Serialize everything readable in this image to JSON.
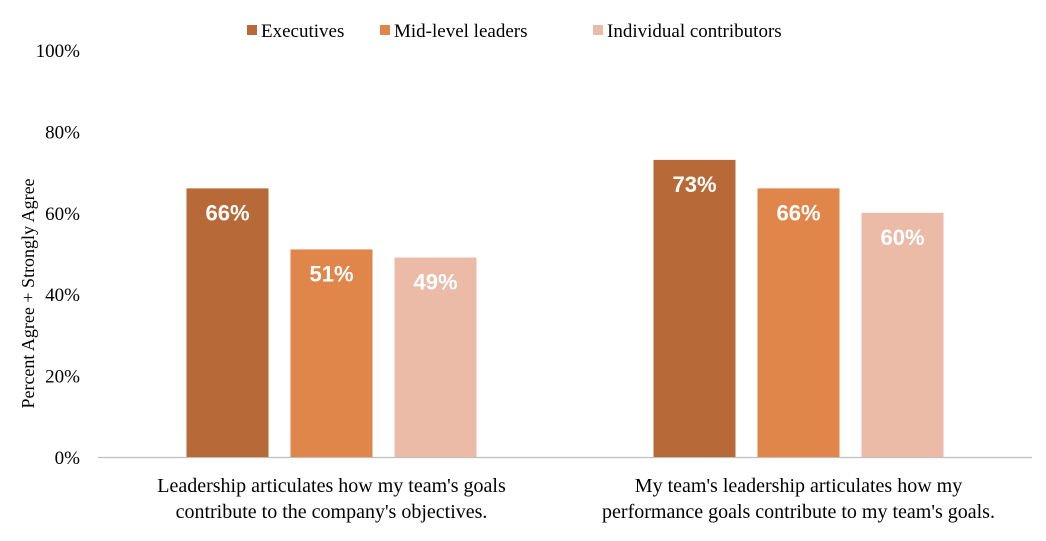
{
  "chart_data": {
    "type": "bar",
    "title": "",
    "ylabel": "Percent Agree + Strongly Agree",
    "xlabel": "",
    "ylim": [
      0,
      100
    ],
    "yticks": [
      0,
      20,
      40,
      60,
      80,
      100
    ],
    "ytick_labels": [
      "0%",
      "20%",
      "40%",
      "60%",
      "80%",
      "100%"
    ],
    "categories": [
      [
        "Leadership articulates how my team's goals",
        "contribute to the company's objectives."
      ],
      [
        "My team's leadership articulates how my",
        "performance goals contribute to my team's goals."
      ]
    ],
    "series": [
      {
        "name": "Executives",
        "color": "#B76A37",
        "values": [
          66,
          73
        ],
        "labels": [
          "66%",
          "73%"
        ]
      },
      {
        "name": "Mid-level leaders",
        "color": "#E0864A",
        "values": [
          51,
          66
        ],
        "labels": [
          "51%",
          "66%"
        ]
      },
      {
        "name": "Individual contributors",
        "color": "#EBBBA7",
        "values": [
          49,
          60
        ],
        "labels": [
          "49%",
          "60%"
        ]
      }
    ],
    "legend_position": "top",
    "grid": false
  }
}
